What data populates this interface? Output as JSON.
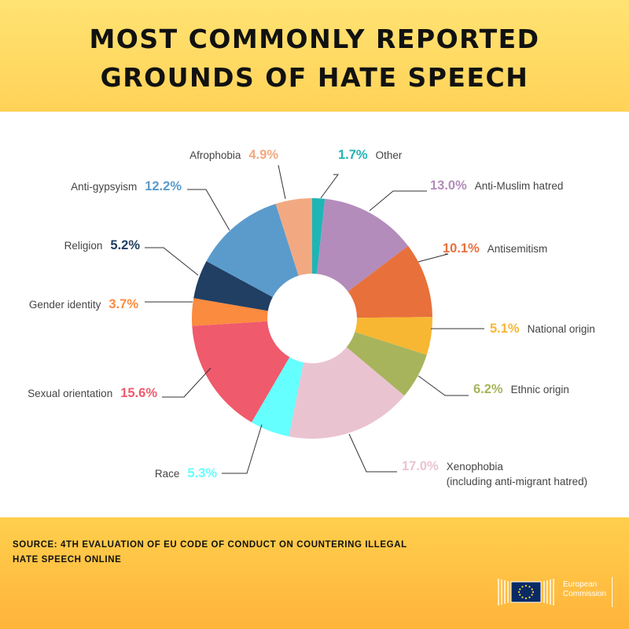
{
  "header": {
    "title_line_1": "MOST COMMONLY REPORTED",
    "title_line_2": "GROUNDS OF HATE SPEECH"
  },
  "footer": {
    "source_line_1": "SOURCE: 4TH EVALUATION OF EU CODE OF CONDUCT ON COUNTERING ILLEGAL",
    "source_line_2": "HATE SPEECH ONLINE",
    "logo_line_1": "European",
    "logo_line_2": "Commission"
  },
  "colors": {
    "header_bg": "#ffdc66",
    "footer_bg": "#ffc043",
    "title_text": "#111111",
    "label_text": "#444444"
  },
  "chart_data": {
    "type": "pie",
    "style": "donut",
    "title": "MOST COMMONLY REPORTED GROUNDS OF HATE SPEECH",
    "slices": [
      {
        "label": "Other",
        "value": 1.7,
        "value_label": "1.7%",
        "color": "#1fb5b5"
      },
      {
        "label": "Anti-Muslim hatred",
        "value": 13.0,
        "value_label": "13.0%",
        "color": "#b38cbb"
      },
      {
        "label": "Antisemitism",
        "value": 10.1,
        "value_label": "10.1%",
        "color": "#e8703b"
      },
      {
        "label": "National origin",
        "value": 5.1,
        "value_label": "5.1%",
        "color": "#f7b733"
      },
      {
        "label": "Ethnic origin",
        "value": 6.2,
        "value_label": "6.2%",
        "color": "#a8b45c"
      },
      {
        "label": "Xenophobia",
        "label_line_2": "(including anti-migrant hatred)",
        "value": 17.0,
        "value_label": "17.0%",
        "color": "#eac3d1"
      },
      {
        "label": "Race",
        "value": 5.3,
        "value_label": "5.3%",
        "color": "#66ffff"
      },
      {
        "label": "Sexual orientation",
        "value": 15.6,
        "value_label": "15.6%",
        "color": "#ef5a6c"
      },
      {
        "label": "Gender identity",
        "value": 3.7,
        "value_label": "3.7%",
        "color": "#fb8b3f"
      },
      {
        "label": "Religion",
        "value": 5.2,
        "value_label": "5.2%",
        "color": "#203f63"
      },
      {
        "label": "Anti-gypsyism",
        "value": 12.2,
        "value_label": "12.2%",
        "color": "#5b9bcc"
      },
      {
        "label": "Afrophobia",
        "value": 4.9,
        "value_label": "4.9%",
        "color": "#f2a982"
      }
    ]
  }
}
